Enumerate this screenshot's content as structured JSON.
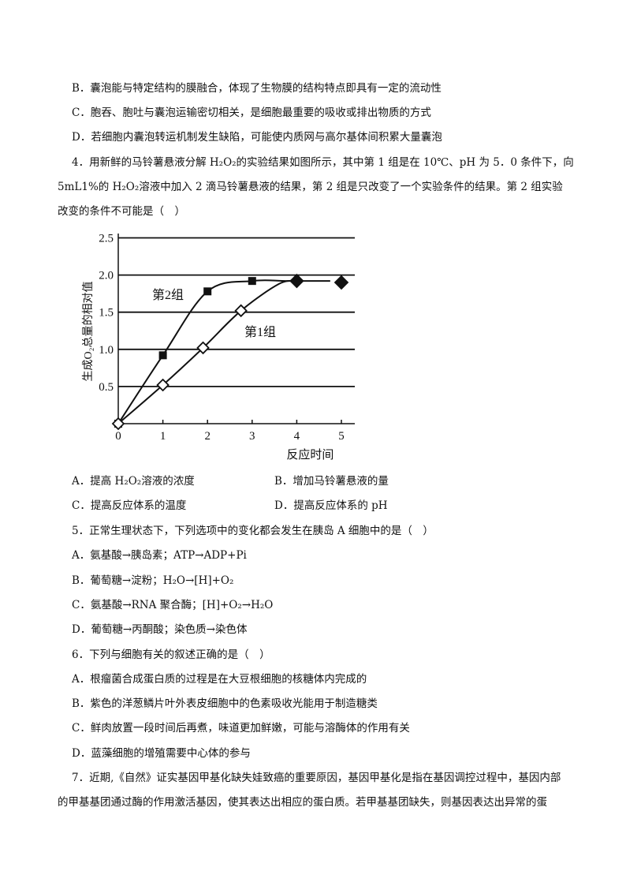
{
  "q3_options": {
    "B": "B．囊泡能与特定结构的膜融合，体现了生物膜的结构特点即具有一定的流动性",
    "C": "C．胞吞、胞吐与囊泡运输密切相关，是细胞最重要的吸收或排出物质的方式",
    "D": "D．若细胞内囊泡转运机制发生缺陷，可能使内质网与高尔基体间积累大量囊泡"
  },
  "q4": {
    "stem_lines": [
      "4．用新鲜的马铃薯悬液分解 H₂O₂的实验结果如图所示，其中第 1 组是在 10℃、pH 为 5．0 条件下，向",
      "5mL1%的 H₂O₂溶液中加入 2 滴马铃薯悬液的结果，第 2 组是只改变了一个实验条件的结果。第 2 组实验",
      "改变的条件不可能是（　）"
    ],
    "options": {
      "A": "A．提高 H₂O₂溶液的浓度",
      "B": "B．增加马铃薯悬液的量",
      "C": "C．提高反应体系的温度",
      "D": "D．提高反应体系的 pH"
    }
  },
  "chart_data": {
    "type": "line",
    "title": "",
    "xlabel": "反应时间",
    "ylabel": "生成O₂总量的相对值",
    "xlim": [
      0,
      5
    ],
    "ylim": [
      0,
      2.5
    ],
    "x_ticks": [
      "0",
      "1",
      "2",
      "3",
      "4",
      "5"
    ],
    "y_ticks": [
      "0.5",
      "1.0",
      "1.5",
      "2.0",
      "2.5"
    ],
    "grid": "horizontal",
    "series": [
      {
        "name": "第2组",
        "marker": "filled-square",
        "x": [
          0,
          1,
          2,
          3
        ],
        "y": [
          0,
          0.92,
          1.78,
          1.92
        ]
      },
      {
        "name": "第1组",
        "marker": "open-diamond",
        "x": [
          0,
          1,
          1.9,
          2.75
        ],
        "y": [
          0,
          0.52,
          1.02,
          1.52
        ]
      },
      {
        "name": "",
        "marker": "filled-diamond",
        "x": [
          4,
          5
        ],
        "y": [
          1.92,
          1.9
        ]
      }
    ],
    "plateau": {
      "y": 1.92,
      "x_end": 4.75
    }
  },
  "q5": {
    "stem": "5．正常生理状态下，下列选项中的变化都会发生在胰岛 A 细胞中的是（　）",
    "options": [
      "A．氨基酸→胰岛素；ATP→ADP+Pi",
      "B．葡萄糖→淀粉；H₂O→[H]+O₂",
      "C．氨基酸→RNA 聚合酶；[H]+O₂→H₂O",
      "D．葡萄糖→丙酮酸；染色质→染色体"
    ]
  },
  "q6": {
    "stem": "6．下列与细胞有关的叙述正确的是（　）",
    "options": [
      "A．根瘤菌合成蛋白质的过程是在大豆根细胞的核糖体内完成的",
      "B．紫色的洋葱鳞片叶外表皮细胞中的色素吸收光能用于制造糖类",
      "C．鲜肉放置一段时间后再煮，味道更加鲜嫩，可能与溶酶体的作用有关",
      "D．蓝藻细胞的增殖需要中心体的参与"
    ]
  },
  "q7": {
    "stem_lines": [
      "7．近期,《自然》证实基因甲基化缺失娃致癌的重要原因，基因甲基化是指在基因调控过程中，基因内部",
      "的甲基基团通过酶的作用激活基因，使其表达出相应的蛋白质。若甲基基团缺失，则基因表达出异常的蛋"
    ]
  }
}
